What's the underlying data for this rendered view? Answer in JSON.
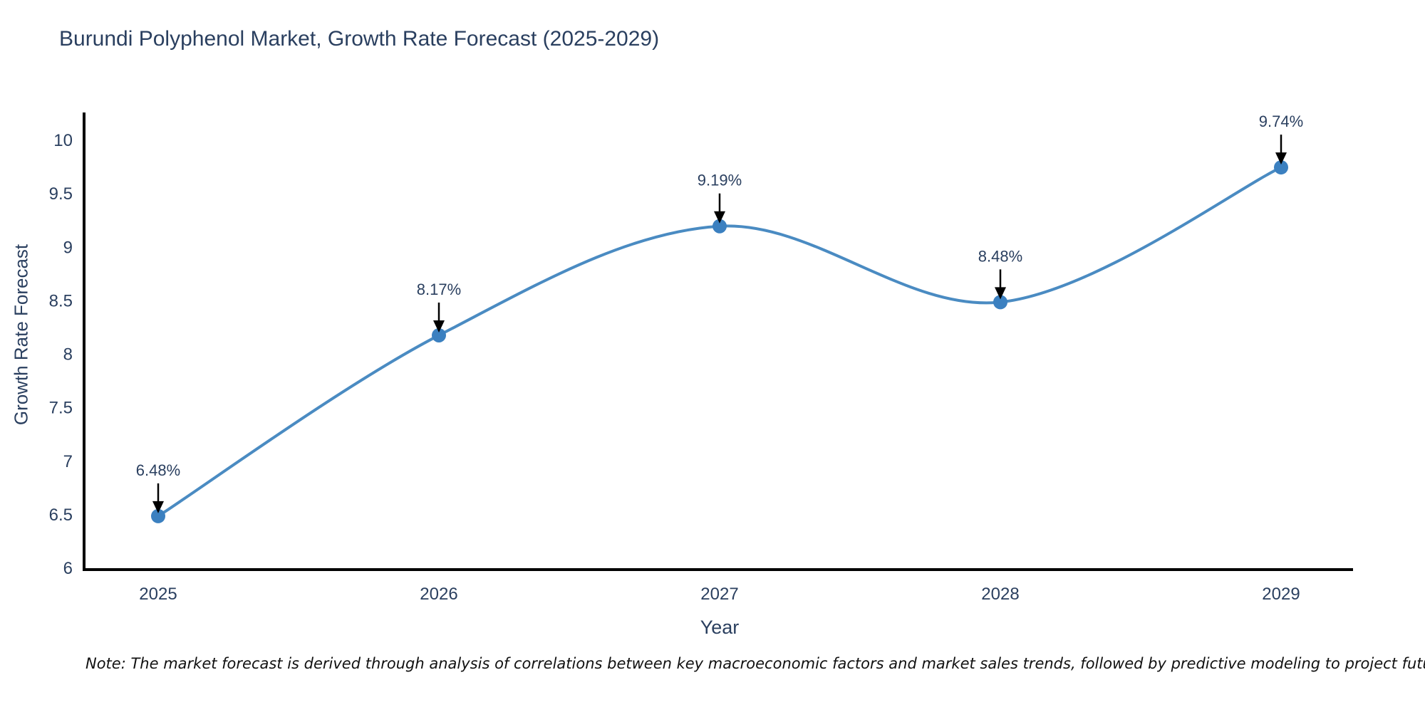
{
  "title": "Burundi Polyphenol Market, Growth Rate Forecast (2025-2029)",
  "note": "Note: The market forecast is derived through analysis of correlations between key macroeconomic factors and market sales trends, followed by predictive modeling to project future sales",
  "colors": {
    "line": "#4a8bc2",
    "marker": "#3b80c0",
    "axis": "#000000",
    "text": "#2a3f5f",
    "annotation_arrow": "#000000"
  },
  "chart_data": {
    "type": "line",
    "curve": "spline",
    "title": "Burundi Polyphenol Market, Growth Rate Forecast (2025-2029)",
    "xlabel": "Year",
    "ylabel": "Growth Rate Forecast",
    "categories": [
      "2025",
      "2026",
      "2027",
      "2028",
      "2029"
    ],
    "values": [
      6.48,
      8.17,
      9.19,
      8.48,
      9.74
    ],
    "point_labels": [
      "6.48%",
      "8.17%",
      "9.19%",
      "8.48%",
      "9.74%"
    ],
    "yticks": [
      6,
      6.5,
      7,
      7.5,
      8,
      8.5,
      9,
      9.5,
      10
    ],
    "ylim": [
      6,
      10.25
    ],
    "grid": false,
    "legend": false,
    "annotations": "value labels with downward arrows above each point"
  }
}
